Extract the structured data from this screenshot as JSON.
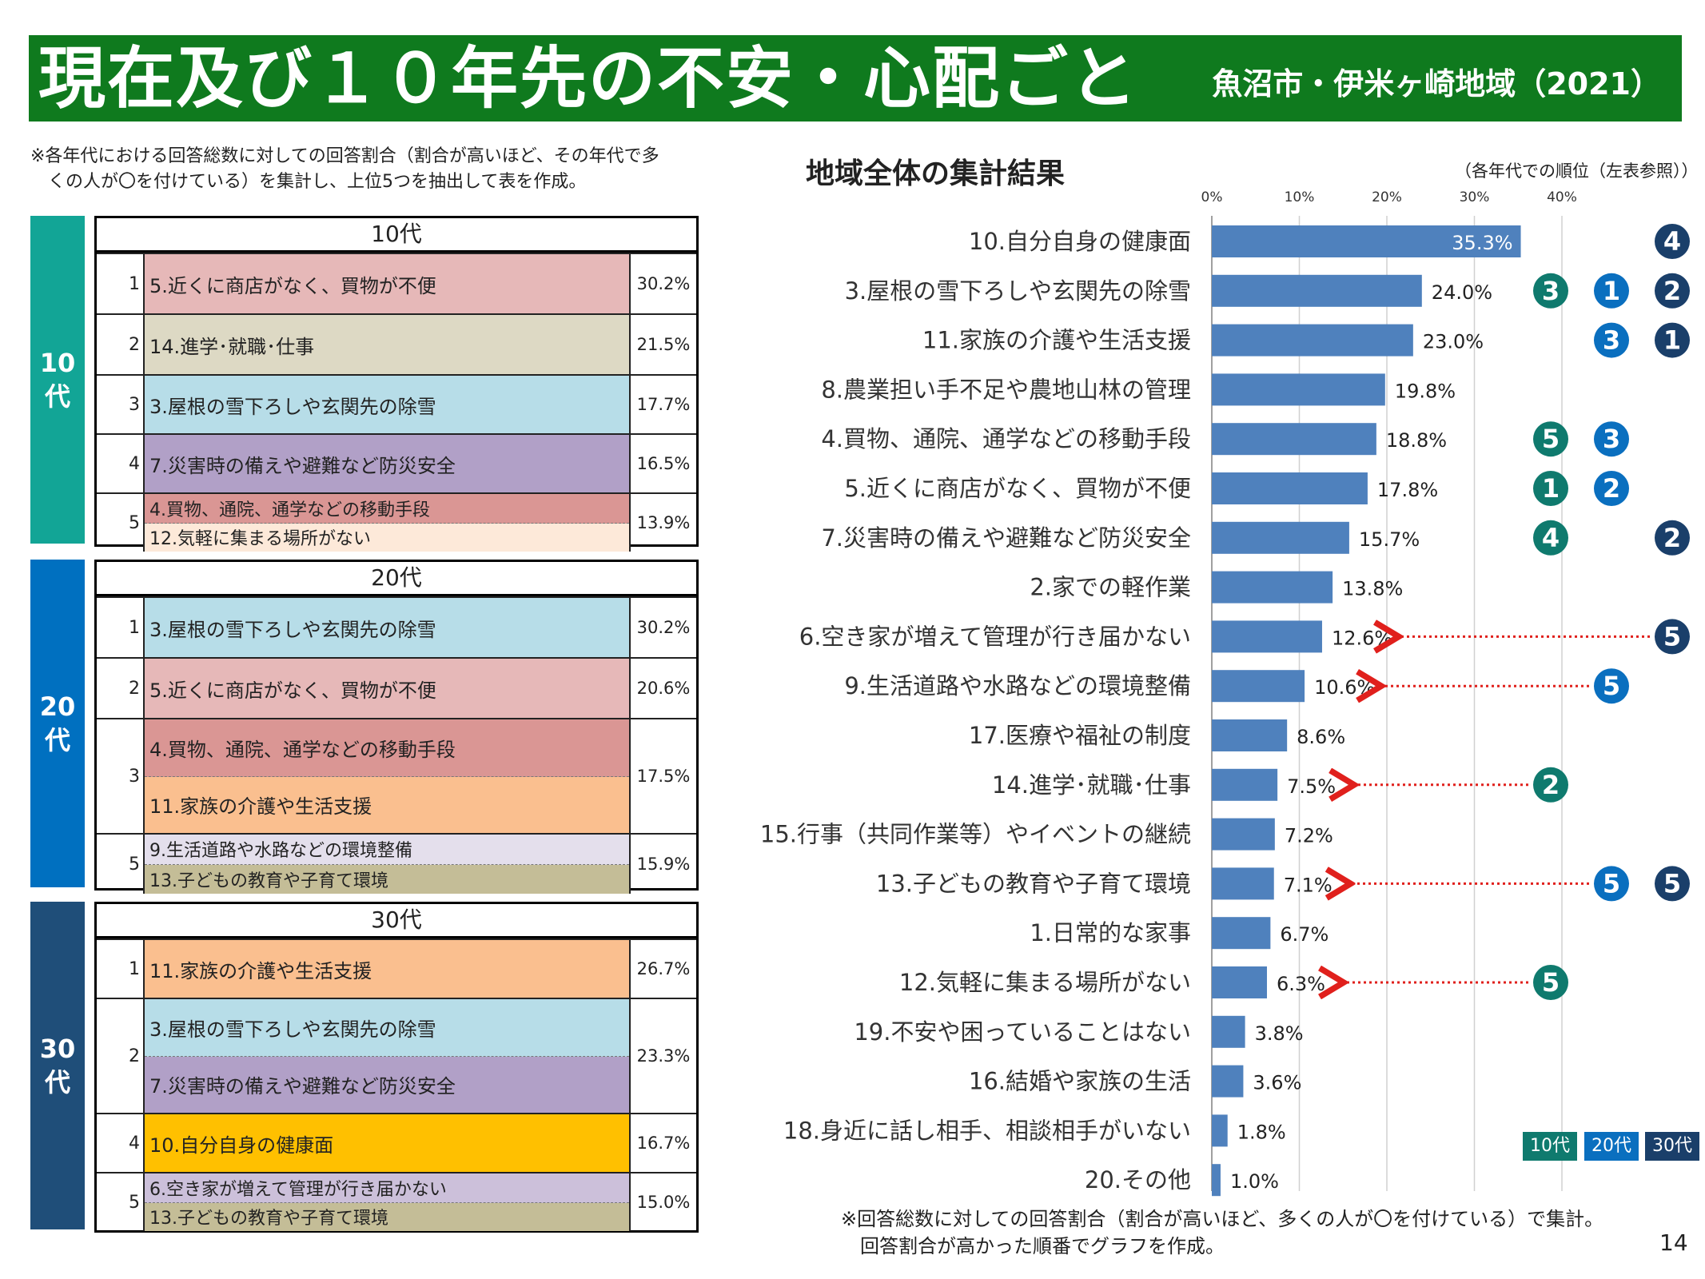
{
  "header": {
    "title": "現在及び１０年先の不安・心配ごと",
    "subtitle": "魚沼市・伊米ヶ崎地域（2021）"
  },
  "left_note": "※各年代における回答総数に対しての回答割合（割合が高いほど、その年代で多\n　くの人が〇を付けている）を集計し、上位5つを抽出して表を作成。",
  "age_tables": [
    {
      "tab": "10\n代",
      "title": "10代",
      "tab_color": "#12a596",
      "rows": [
        {
          "rank": "1",
          "pct": "30.2%",
          "items": [
            {
              "label": "5.近くに商店がなく、買物が不便",
              "color": "#e6b8b8"
            }
          ]
        },
        {
          "rank": "2",
          "pct": "21.5%",
          "items": [
            {
              "label": "14.進学･就職･仕事",
              "color": "#ddd9c4"
            }
          ]
        },
        {
          "rank": "3",
          "pct": "17.7%",
          "items": [
            {
              "label": "3.屋根の雪下ろしや玄関先の除雪",
              "color": "#b7dde8"
            }
          ]
        },
        {
          "rank": "4",
          "pct": "16.5%",
          "items": [
            {
              "label": "7.災害時の備えや避難など防災安全",
              "color": "#b1a0c7"
            }
          ]
        },
        {
          "rank": "5",
          "pct": "13.9%",
          "items": [
            {
              "label": "4.買物、通院、通学などの移動手段",
              "color": "#da9694"
            },
            {
              "label": "12.気軽に集まる場所がない",
              "color": "#fde9d9"
            }
          ]
        }
      ]
    },
    {
      "tab": "20\n代",
      "title": "20代",
      "tab_color": "#0070c0",
      "rows": [
        {
          "rank": "1",
          "pct": "30.2%",
          "items": [
            {
              "label": "3.屋根の雪下ろしや玄関先の除雪",
              "color": "#b7dde8"
            }
          ]
        },
        {
          "rank": "2",
          "pct": "20.6%",
          "items": [
            {
              "label": "5.近くに商店がなく、買物が不便",
              "color": "#e6b8b8"
            }
          ]
        },
        {
          "rank": "3",
          "pct": "17.5%",
          "items": [
            {
              "label": "4.買物、通院、通学などの移動手段",
              "color": "#da9694"
            },
            {
              "label": "11.家族の介護や生活支援",
              "color": "#fabf8f"
            }
          ]
        },
        {
          "rank": "5",
          "pct": "15.9%",
          "items": [
            {
              "label": "9.生活道路や水路などの環境整備",
              "color": "#e4dfec"
            },
            {
              "label": "13.子どもの教育や子育て環境",
              "color": "#c4bd97"
            }
          ]
        }
      ]
    },
    {
      "tab": "30\n代",
      "title": "30代",
      "tab_color": "#1f4e79",
      "rows": [
        {
          "rank": "1",
          "pct": "26.7%",
          "items": [
            {
              "label": "11.家族の介護や生活支援",
              "color": "#fabf8f"
            }
          ]
        },
        {
          "rank": "2",
          "pct": "23.3%",
          "items": [
            {
              "label": "3.屋根の雪下ろしや玄関先の除雪",
              "color": "#b7dde8"
            },
            {
              "label": "7.災害時の備えや避難など防災安全",
              "color": "#b1a0c7"
            }
          ]
        },
        {
          "rank": "4",
          "pct": "16.7%",
          "items": [
            {
              "label": "10.自分自身の健康面",
              "color": "#ffc000"
            }
          ]
        },
        {
          "rank": "5",
          "pct": "15.0%",
          "items": [
            {
              "label": "6.空き家が増えて管理が行き届かない",
              "color": "#ccc0da"
            },
            {
              "label": "13.子どもの教育や子育て環境",
              "color": "#c4bd97"
            }
          ]
        }
      ]
    }
  ],
  "chart_header": {
    "title": "地域全体の集計結果",
    "rank_note": "（各年代での順位（左表参照））"
  },
  "chart_data": {
    "type": "bar",
    "orientation": "horizontal",
    "xlim": [
      0,
      45
    ],
    "xticks": [
      "0%",
      "10%",
      "20%",
      "30%",
      "40%"
    ],
    "xtick_values": [
      0,
      10,
      20,
      30,
      40
    ],
    "grid": true,
    "bar_color": "#4f81bd",
    "categories": [
      "10.自分自身の健康面",
      "3.屋根の雪下ろしや玄関先の除雪",
      "11.家族の介護や生活支援",
      "8.農業担い手不足や農地山林の管理",
      "4.買物、通院、通学などの移動手段",
      "5.近くに商店がなく、買物が不便",
      "7.災害時の備えや避難など防災安全",
      "2.家での軽作業",
      "6.空き家が増えて管理が行き届かない",
      "9.生活道路や水路などの環境整備",
      "17.医療や福祉の制度",
      "14.進学･就職･仕事",
      "15.行事（共同作業等）やイベントの継続",
      "13.子どもの教育や子育て環境",
      "1.日常的な家事",
      "12.気軽に集まる場所がない",
      "19.不安や困っていることはない",
      "16.結婚や家族の生活",
      "18.身近に話し相手、相談相手がいない",
      "20.その他"
    ],
    "values": [
      35.3,
      24.0,
      23.0,
      19.8,
      18.8,
      17.8,
      15.7,
      13.8,
      12.6,
      10.6,
      8.6,
      7.5,
      7.2,
      7.1,
      6.7,
      6.3,
      3.8,
      3.6,
      1.8,
      1.0
    ],
    "value_labels": [
      "35.3%",
      "24.0%",
      "23.0%",
      "19.8%",
      "18.8%",
      "17.8%",
      "15.7%",
      "13.8%",
      "12.6%",
      "10.6%",
      "8.6%",
      "7.5%",
      "7.2%",
      "7.1%",
      "6.7%",
      "6.3%",
      "3.8%",
      "3.6%",
      "1.8%",
      "1.0%"
    ],
    "rank_markers": {
      "10代": [
        null,
        3,
        null,
        null,
        5,
        1,
        4,
        null,
        null,
        null,
        null,
        2,
        null,
        null,
        null,
        5,
        null,
        null,
        null,
        null
      ],
      "20代": [
        null,
        1,
        3,
        null,
        3,
        2,
        null,
        null,
        null,
        5,
        null,
        null,
        null,
        5,
        null,
        null,
        null,
        null,
        null,
        null
      ],
      "30代": [
        4,
        2,
        1,
        null,
        null,
        null,
        2,
        null,
        5,
        null,
        null,
        null,
        null,
        5,
        null,
        null,
        null,
        null,
        null,
        null
      ]
    },
    "arrows_from": [
      "6.空き家が増えて管理が行き届かない",
      "9.生活道路や水路などの環境整備",
      "14.進学･就職･仕事",
      "13.子どもの教育や子育て環境",
      "12.気軽に集まる場所がない"
    ],
    "legend": [
      {
        "label": "10代",
        "color": "#0f7a6e"
      },
      {
        "label": "20代",
        "color": "#0a6fbf"
      },
      {
        "label": "30代",
        "color": "#1a3f6a"
      }
    ]
  },
  "chart_footnote": "※回答総数に対しての回答割合（割合が高いほど、多くの人が〇を付けている）で集計。\n　回答割合が高かった順番でグラフを作成。",
  "page_number": "14"
}
